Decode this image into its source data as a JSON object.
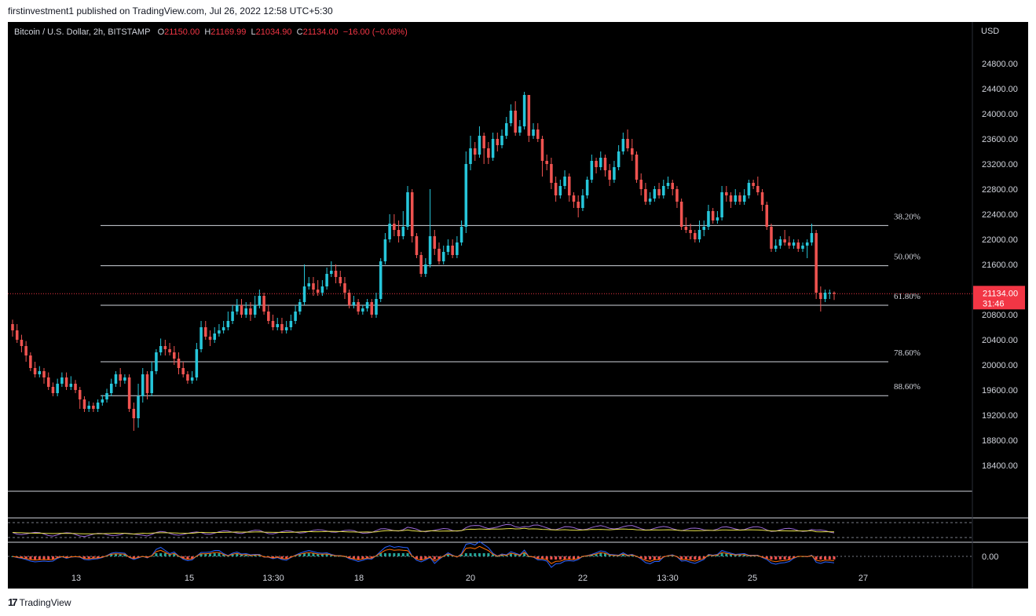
{
  "publish_line": "firstinvestment1 published on TradingView.com, Jul 26, 2022 12:58 UTC+5:30",
  "symbol": {
    "name": "Bitcoin / U.S. Dollar, 2h, BITSTAMP",
    "open_label": "O",
    "open": "21150.00",
    "high_label": "H",
    "high": "21169.99",
    "low_label": "L",
    "low": "21034.90",
    "close_label": "C",
    "close": "21134.00",
    "change": "−16.00 (−0.08%)"
  },
  "currency": "USD",
  "price_tag": {
    "price": "21134.00",
    "countdown": "31:46"
  },
  "macd_zero_label": "0.00",
  "footer": {
    "logo_text": "TradingView"
  },
  "colors": {
    "up": "#26c6da",
    "down": "#ef5350",
    "background": "#000000",
    "axis_text": "#d1d4dc",
    "fib_line": "#d1d4dc",
    "price_line": "#f23645"
  },
  "chart_data": {
    "type": "candlestick",
    "ylim": [
      18000,
      25300
    ],
    "y_ticks": [
      "24800.00",
      "24400.00",
      "24000.00",
      "23600.00",
      "23200.00",
      "22800.00",
      "22400.00",
      "22000.00",
      "21600.00",
      "20800.00",
      "20400.00",
      "20000.00",
      "19600.00",
      "19200.00",
      "18800.00",
      "18400.00"
    ],
    "x_ticks": [
      "13",
      "15",
      "13:30",
      "18",
      "20",
      "22",
      "13:30",
      "25",
      "27"
    ],
    "fib_levels": [
      {
        "label": "38.20%",
        "price": 22220
      },
      {
        "label": "50.00%",
        "price": 21580
      },
      {
        "label": "61.80%",
        "price": 20950
      },
      {
        "label": "78.60%",
        "price": 20050
      },
      {
        "label": "88.60%",
        "price": 19510
      }
    ],
    "current_price": 21134,
    "candles": [
      [
        20650,
        20550,
        20720,
        20450
      ],
      [
        20550,
        20400,
        20650,
        20350
      ],
      [
        20400,
        20300,
        20480,
        20200
      ],
      [
        20300,
        20150,
        20380,
        20050
      ],
      [
        20150,
        19950,
        20200,
        19900
      ],
      [
        19950,
        19850,
        20050,
        19800
      ],
      [
        19850,
        19900,
        19980,
        19800
      ],
      [
        19900,
        19800,
        19950,
        19700
      ],
      [
        19800,
        19650,
        19880,
        19600
      ],
      [
        19650,
        19550,
        19720,
        19500
      ],
      [
        19550,
        19700,
        19780,
        19500
      ],
      [
        19700,
        19800,
        19880,
        19650
      ],
      [
        19800,
        19650,
        19880,
        19600
      ],
      [
        19650,
        19700,
        19820,
        19600
      ],
      [
        19700,
        19600,
        19760,
        19550
      ],
      [
        19600,
        19450,
        19650,
        19300
      ],
      [
        19450,
        19300,
        19500,
        19250
      ],
      [
        19300,
        19350,
        19420,
        19250
      ],
      [
        19350,
        19300,
        19400,
        19250
      ],
      [
        19300,
        19400,
        19450,
        19250
      ],
      [
        19400,
        19450,
        19520,
        19350
      ],
      [
        19450,
        19550,
        19620,
        19400
      ],
      [
        19550,
        19700,
        19780,
        19500
      ],
      [
        19700,
        19850,
        19900,
        19650
      ],
      [
        19850,
        19750,
        19950,
        19650
      ],
      [
        19750,
        19800,
        19850,
        19700
      ],
      [
        19800,
        19300,
        19850,
        19250
      ],
      [
        19300,
        19150,
        19400,
        18950
      ],
      [
        19150,
        19500,
        19700,
        19000
      ],
      [
        19500,
        19850,
        19950,
        19400
      ],
      [
        19850,
        19550,
        19900,
        19450
      ],
      [
        19550,
        19900,
        20050,
        19500
      ],
      [
        19900,
        20200,
        20250,
        19850
      ],
      [
        20200,
        20300,
        20420,
        20150
      ],
      [
        20300,
        20250,
        20400,
        20150
      ],
      [
        20250,
        20200,
        20350,
        20150
      ],
      [
        20200,
        20100,
        20300,
        20000
      ],
      [
        20100,
        19950,
        20200,
        19850
      ],
      [
        19950,
        19850,
        20050,
        19800
      ],
      [
        19850,
        19750,
        19900,
        19700
      ],
      [
        19750,
        19800,
        19900,
        19700
      ],
      [
        19800,
        20250,
        20350,
        19750
      ],
      [
        20250,
        20600,
        20700,
        20200
      ],
      [
        20600,
        20450,
        20700,
        20400
      ],
      [
        20450,
        20400,
        20550,
        20300
      ],
      [
        20400,
        20500,
        20600,
        20350
      ],
      [
        20500,
        20550,
        20650,
        20450
      ],
      [
        20550,
        20600,
        20700,
        20500
      ],
      [
        20600,
        20700,
        20850,
        20550
      ],
      [
        20700,
        20850,
        20950,
        20650
      ],
      [
        20850,
        20950,
        21050,
        20800
      ],
      [
        20950,
        20800,
        21050,
        20750
      ],
      [
        20800,
        20900,
        21000,
        20750
      ],
      [
        20900,
        20800,
        21000,
        20700
      ],
      [
        20800,
        20950,
        21100,
        20750
      ],
      [
        20950,
        21100,
        21200,
        20900
      ],
      [
        21100,
        20850,
        21150,
        20800
      ],
      [
        20850,
        20700,
        20950,
        20650
      ],
      [
        20700,
        20600,
        20800,
        20550
      ],
      [
        20600,
        20650,
        20750,
        20550
      ],
      [
        20650,
        20550,
        20750,
        20500
      ],
      [
        20550,
        20600,
        20700,
        20500
      ],
      [
        20600,
        20700,
        20800,
        20550
      ],
      [
        20700,
        20850,
        20950,
        20650
      ],
      [
        20850,
        21000,
        21050,
        20800
      ],
      [
        21000,
        21250,
        21600,
        20950
      ],
      [
        21250,
        21300,
        21400,
        21200
      ],
      [
        21300,
        21200,
        21400,
        21100
      ],
      [
        21200,
        21150,
        21350,
        21100
      ],
      [
        21150,
        21250,
        21350,
        21100
      ],
      [
        21250,
        21450,
        21550,
        21200
      ],
      [
        21450,
        21500,
        21650,
        21400
      ],
      [
        21500,
        21400,
        21600,
        21300
      ],
      [
        21400,
        21300,
        21500,
        21250
      ],
      [
        21300,
        21150,
        21400,
        21050
      ],
      [
        21150,
        20950,
        21200,
        20900
      ],
      [
        20950,
        21000,
        21100,
        20900
      ],
      [
        21000,
        20850,
        21050,
        20800
      ],
      [
        20850,
        20900,
        20950,
        20800
      ],
      [
        20900,
        21000,
        21050,
        20850
      ],
      [
        21000,
        20800,
        21050,
        20750
      ],
      [
        20800,
        21050,
        21150,
        20750
      ],
      [
        21050,
        21650,
        21700,
        21000
      ],
      [
        21650,
        22000,
        22100,
        21600
      ],
      [
        22000,
        22250,
        22400,
        21950
      ],
      [
        22250,
        22150,
        22400,
        22050
      ],
      [
        22150,
        22050,
        22300,
        21950
      ],
      [
        22050,
        22200,
        22450,
        22000
      ],
      [
        22200,
        22750,
        22850,
        22150
      ],
      [
        22750,
        22050,
        22800,
        21950
      ],
      [
        22050,
        21750,
        22100,
        21700
      ],
      [
        21750,
        21450,
        21800,
        21400
      ],
      [
        21450,
        21600,
        21700,
        21400
      ],
      [
        21600,
        22050,
        22800,
        21550
      ],
      [
        22050,
        21850,
        22150,
        21750
      ],
      [
        21850,
        21650,
        21950,
        21600
      ],
      [
        21650,
        21800,
        21900,
        21600
      ],
      [
        21800,
        21900,
        22000,
        21750
      ],
      [
        21900,
        21750,
        22000,
        21700
      ],
      [
        21750,
        21950,
        22050,
        21700
      ],
      [
        21950,
        22200,
        22300,
        21900
      ],
      [
        22200,
        23200,
        23400,
        22100
      ],
      [
        23200,
        23450,
        23650,
        23100
      ],
      [
        23450,
        23350,
        23550,
        23250
      ],
      [
        23350,
        23650,
        23800,
        23300
      ],
      [
        23650,
        23450,
        23700,
        23200
      ],
      [
        23450,
        23300,
        23550,
        23200
      ],
      [
        23300,
        23600,
        23700,
        23250
      ],
      [
        23600,
        23500,
        23700,
        23400
      ],
      [
        23500,
        23650,
        23750,
        23450
      ],
      [
        23650,
        23850,
        23950,
        23600
      ],
      [
        23850,
        24050,
        24150,
        23800
      ],
      [
        24050,
        23700,
        24200,
        23650
      ],
      [
        23700,
        23800,
        23900,
        23650
      ],
      [
        23800,
        24300,
        24350,
        23750
      ],
      [
        24300,
        23650,
        24250,
        23550
      ],
      [
        23650,
        23750,
        23850,
        23600
      ],
      [
        23750,
        23600,
        23850,
        23550
      ],
      [
        23600,
        23250,
        23650,
        23000
      ],
      [
        23250,
        23200,
        23350,
        23100
      ],
      [
        23200,
        22900,
        23300,
        22800
      ],
      [
        22900,
        22700,
        23000,
        22600
      ],
      [
        22700,
        22850,
        22950,
        22650
      ],
      [
        22850,
        23000,
        23100,
        22800
      ],
      [
        23000,
        22700,
        23050,
        22600
      ],
      [
        22700,
        22600,
        22750,
        22500
      ],
      [
        22600,
        22500,
        22700,
        22350
      ],
      [
        22500,
        22700,
        22800,
        22450
      ],
      [
        22700,
        22950,
        23000,
        22650
      ],
      [
        22950,
        23250,
        23350,
        22900
      ],
      [
        23250,
        23150,
        23300,
        23050
      ],
      [
        23150,
        23300,
        23400,
        23100
      ],
      [
        23300,
        23100,
        23350,
        23000
      ],
      [
        23100,
        22950,
        23200,
        22850
      ],
      [
        22950,
        23150,
        23250,
        22900
      ],
      [
        23150,
        23400,
        23500,
        23100
      ],
      [
        23400,
        23600,
        23700,
        23350
      ],
      [
        23600,
        23450,
        23750,
        23400
      ],
      [
        23450,
        23350,
        23600,
        23250
      ],
      [
        23350,
        22950,
        23400,
        22900
      ],
      [
        22950,
        22800,
        23050,
        22700
      ],
      [
        22800,
        22600,
        22900,
        22550
      ],
      [
        22600,
        22650,
        22750,
        22550
      ],
      [
        22650,
        22800,
        22850,
        22600
      ],
      [
        22800,
        22700,
        22900,
        22650
      ],
      [
        22700,
        22850,
        22950,
        22650
      ],
      [
        22850,
        22900,
        23000,
        22800
      ],
      [
        22900,
        22800,
        22950,
        22700
      ],
      [
        22800,
        22600,
        22850,
        22500
      ],
      [
        22600,
        22200,
        22650,
        22150
      ],
      [
        22200,
        22150,
        22350,
        22100
      ],
      [
        22150,
        22100,
        22250,
        22000
      ],
      [
        22100,
        22000,
        22150,
        21950
      ],
      [
        22000,
        22150,
        22300,
        21950
      ],
      [
        22150,
        22200,
        22300,
        22050
      ],
      [
        22200,
        22450,
        22550,
        22150
      ],
      [
        22450,
        22300,
        22500,
        22250
      ],
      [
        22300,
        22350,
        22450,
        22250
      ],
      [
        22350,
        22750,
        22850,
        22300
      ],
      [
        22750,
        22700,
        22850,
        22600
      ],
      [
        22700,
        22600,
        22750,
        22500
      ],
      [
        22600,
        22700,
        22800,
        22550
      ],
      [
        22700,
        22600,
        22750,
        22550
      ],
      [
        22600,
        22700,
        22800,
        22550
      ],
      [
        22700,
        22900,
        22950,
        22650
      ],
      [
        22900,
        22850,
        22950,
        22800
      ],
      [
        22850,
        22750,
        23000,
        22700
      ],
      [
        22750,
        22550,
        22800,
        22450
      ],
      [
        22550,
        22200,
        22600,
        22150
      ],
      [
        22200,
        21850,
        22250,
        21800
      ],
      [
        21850,
        21900,
        22000,
        21800
      ],
      [
        21900,
        22000,
        22050,
        21850
      ],
      [
        22000,
        21950,
        22150,
        21900
      ],
      [
        21950,
        21900,
        22050,
        21850
      ],
      [
        21900,
        21950,
        22000,
        21850
      ],
      [
        21950,
        21850,
        22000,
        21800
      ],
      [
        21850,
        21900,
        21950,
        21800
      ],
      [
        21900,
        21950,
        22000,
        21700
      ],
      [
        21950,
        22100,
        22250,
        21900
      ],
      [
        22100,
        21150,
        22150,
        21050
      ],
      [
        21150,
        21050,
        21250,
        20850
      ],
      [
        21050,
        21150,
        21200,
        21000
      ],
      [
        21150,
        21150,
        21200,
        21050
      ],
      [
        21150,
        21134,
        21170,
        21035
      ]
    ]
  }
}
